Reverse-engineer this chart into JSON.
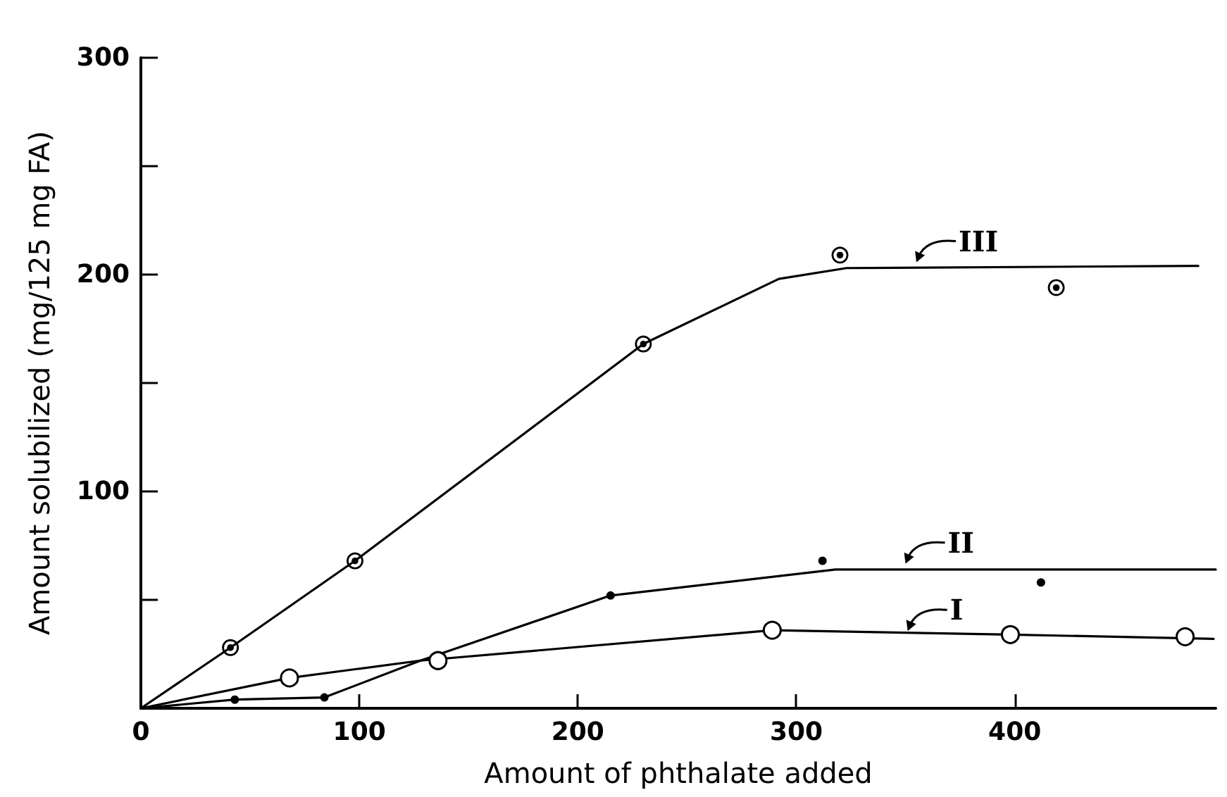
{
  "chart_data": {
    "type": "scatter",
    "xlabel": "Amount of phthalate added",
    "ylabel": "Amount solubilized (mg/125 mg FA)",
    "xlim": [
      0,
      492
    ],
    "ylim": [
      0,
      300
    ],
    "xticks": [
      0,
      100,
      200,
      300,
      400
    ],
    "yticks": [
      {
        "value": 50,
        "label": null
      },
      100,
      {
        "value": 150,
        "label": null
      },
      200,
      {
        "value": 250,
        "label": null
      },
      300
    ],
    "grid": false,
    "series": [
      {
        "type": "line",
        "color": "#000000",
        "marker": "none",
        "x": [
          0,
          68,
          128,
          289,
          398,
          491
        ],
        "values": [
          0,
          14,
          22,
          36,
          34,
          32
        ]
      },
      {
        "type": "line",
        "color": "#000000",
        "marker": "none",
        "x": [
          0,
          43,
          84,
          128,
          215,
          318,
          492
        ],
        "values": [
          0,
          4,
          5,
          22,
          52,
          64,
          64
        ]
      },
      {
        "type": "line",
        "color": "#000000",
        "marker": "none",
        "x": [
          0,
          41,
          98,
          230,
          292,
          323,
          484
        ],
        "values": [
          0,
          28,
          68,
          168,
          198,
          203,
          204
        ]
      },
      {
        "color": "#000000",
        "marker": "circle",
        "x": [
          68,
          136,
          289,
          398,
          478
        ],
        "values": [
          14,
          22,
          36,
          34,
          33
        ]
      },
      {
        "color": "#000000",
        "marker": "circle",
        "x": [
          43,
          84,
          215,
          312,
          412
        ],
        "values": [
          4,
          5,
          52,
          68,
          58
        ]
      },
      {
        "color": "#000000",
        "marker": "circle",
        "x": [
          41,
          98,
          230,
          320,
          419
        ],
        "values": [
          28,
          68,
          168,
          209,
          194
        ]
      }
    ],
    "annotations": [
      {
        "text": "I",
        "x": 351,
        "y": 35
      },
      {
        "text": "II",
        "x": 350,
        "y": 66
      },
      {
        "text": "III",
        "x": 355,
        "y": 205
      }
    ]
  }
}
